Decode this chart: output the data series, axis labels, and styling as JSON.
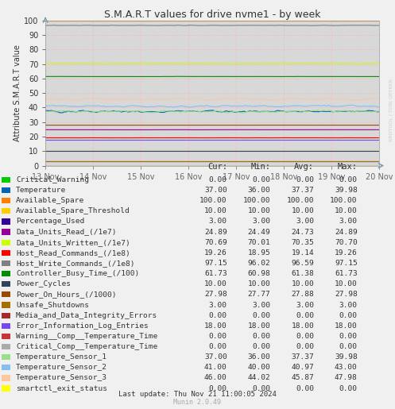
{
  "title": "S.M.A.R.T values for drive nvme1 - by week",
  "ylabel": "Attribute S.M.A.R.T value",
  "background_color": "#f0f0f0",
  "plot_bg_color": "#d8d8d8",
  "figsize": [
    4.97,
    5.15
  ],
  "dpi": 100,
  "x_start": 0,
  "x_end": 7,
  "x_ticks": [
    0,
    1,
    2,
    3,
    4,
    5,
    6,
    7
  ],
  "x_ticks_labels": [
    "13 Nov",
    "14 Nov",
    "15 Nov",
    "16 Nov",
    "17 Nov",
    "18 Nov",
    "19 Nov",
    "20 Nov"
  ],
  "ylim": [
    0,
    100
  ],
  "yticks": [
    0,
    10,
    20,
    30,
    40,
    50,
    60,
    70,
    80,
    90,
    100
  ],
  "watermark": "RRDTOOL / TOBI OETKER",
  "last_update": "Last update: Thu Nov 21 11:00:05 2024",
  "munin_version": "Munin 2.0.49",
  "series": [
    {
      "label": "Critical_Warning",
      "color": "#00cc00",
      "value": 0.0,
      "flat": true,
      "noise": 0.0
    },
    {
      "label": "Temperature",
      "color": "#0066b3",
      "value": 37.37,
      "flat": false,
      "noise": 1.5
    },
    {
      "label": "Available_Spare",
      "color": "#ff8000",
      "value": 100.0,
      "flat": true,
      "noise": 0.0
    },
    {
      "label": "Available_Spare_Threshold",
      "color": "#ffcc00",
      "value": 10.0,
      "flat": true,
      "noise": 0.0
    },
    {
      "label": "Percentage_Used",
      "color": "#330099",
      "value": 3.0,
      "flat": true,
      "noise": 0.0
    },
    {
      "label": "Data_Units_Read_(/1e7)",
      "color": "#990099",
      "value": 24.73,
      "flat": true,
      "noise": 0.1
    },
    {
      "label": "Data_Units_Written_(/1e7)",
      "color": "#ccff00",
      "value": 70.35,
      "flat": true,
      "noise": 0.2
    },
    {
      "label": "Host_Read_Commands_(/1e8)",
      "color": "#ff0000",
      "value": 19.14,
      "flat": true,
      "noise": 0.1
    },
    {
      "label": "Host_Write_Commands_(/1e8)",
      "color": "#808080",
      "value": 96.59,
      "flat": true,
      "noise": 0.3
    },
    {
      "label": "Controller_Busy_Time_(/100)",
      "color": "#008f00",
      "value": 61.38,
      "flat": true,
      "noise": 0.1
    },
    {
      "label": "Power_Cycles",
      "color": "#304358",
      "value": 10.0,
      "flat": true,
      "noise": 0.0
    },
    {
      "label": "Power_On_Hours_(/1000)",
      "color": "#9c4900",
      "value": 27.88,
      "flat": true,
      "noise": 0.05
    },
    {
      "label": "Unsafe_Shutdowns",
      "color": "#a57000",
      "value": 3.0,
      "flat": true,
      "noise": 0.0
    },
    {
      "label": "Media_and_Data_Integrity_Errors",
      "color": "#a52a2a",
      "value": 0.0,
      "flat": true,
      "noise": 0.0
    },
    {
      "label": "Error_Information_Log_Entries",
      "color": "#7648eb",
      "value": 18.0,
      "flat": true,
      "noise": 0.0
    },
    {
      "label": "Warning__Comp__Temperature_Time",
      "color": "#cc3333",
      "value": 0.0,
      "flat": true,
      "noise": 0.0
    },
    {
      "label": "Critical_Comp__Temperature_Time",
      "color": "#aaaaaa",
      "value": 0.0,
      "flat": true,
      "noise": 0.0
    },
    {
      "label": "Temperature_Sensor_1",
      "color": "#98df8a",
      "value": 37.37,
      "flat": false,
      "noise": 1.5
    },
    {
      "label": "Temperature_Sensor_2",
      "color": "#86bfef",
      "value": 40.97,
      "flat": false,
      "noise": 1.5
    },
    {
      "label": "Temperature_Sensor_3",
      "color": "#ffc79e",
      "value": 45.87,
      "flat": false,
      "noise": 1.5
    },
    {
      "label": "smartctl_exit_status",
      "color": "#ffff00",
      "value": 0.0,
      "flat": true,
      "noise": 0.0
    }
  ],
  "legend_data": [
    {
      "label": "Critical_Warning",
      "color": "#00cc00",
      "cur": "0.00",
      "min": "0.00",
      "avg": "0.00",
      "max": "0.00"
    },
    {
      "label": "Temperature",
      "color": "#0066b3",
      "cur": "37.00",
      "min": "36.00",
      "avg": "37.37",
      "max": "39.98"
    },
    {
      "label": "Available_Spare",
      "color": "#ff8000",
      "cur": "100.00",
      "min": "100.00",
      "avg": "100.00",
      "max": "100.00"
    },
    {
      "label": "Available_Spare_Threshold",
      "color": "#ffcc00",
      "cur": "10.00",
      "min": "10.00",
      "avg": "10.00",
      "max": "10.00"
    },
    {
      "label": "Percentage_Used",
      "color": "#330099",
      "cur": "3.00",
      "min": "3.00",
      "avg": "3.00",
      "max": "3.00"
    },
    {
      "label": "Data_Units_Read_(/1e7)",
      "color": "#990099",
      "cur": "24.89",
      "min": "24.49",
      "avg": "24.73",
      "max": "24.89"
    },
    {
      "label": "Data_Units_Written_(/1e7)",
      "color": "#ccff00",
      "cur": "70.69",
      "min": "70.01",
      "avg": "70.35",
      "max": "70.70"
    },
    {
      "label": "Host_Read_Commands_(/1e8)",
      "color": "#ff0000",
      "cur": "19.26",
      "min": "18.95",
      "avg": "19.14",
      "max": "19.26"
    },
    {
      "label": "Host_Write_Commands_(/1e8)",
      "color": "#808080",
      "cur": "97.15",
      "min": "96.02",
      "avg": "96.59",
      "max": "97.15"
    },
    {
      "label": "Controller_Busy_Time_(/100)",
      "color": "#008f00",
      "cur": "61.73",
      "min": "60.98",
      "avg": "61.38",
      "max": "61.73"
    },
    {
      "label": "Power_Cycles",
      "color": "#304358",
      "cur": "10.00",
      "min": "10.00",
      "avg": "10.00",
      "max": "10.00"
    },
    {
      "label": "Power_On_Hours_(/1000)",
      "color": "#9c4900",
      "cur": "27.98",
      "min": "27.77",
      "avg": "27.88",
      "max": "27.98"
    },
    {
      "label": "Unsafe_Shutdowns",
      "color": "#a57000",
      "cur": "3.00",
      "min": "3.00",
      "avg": "3.00",
      "max": "3.00"
    },
    {
      "label": "Media_and_Data_Integrity_Errors",
      "color": "#a52a2a",
      "cur": "0.00",
      "min": "0.00",
      "avg": "0.00",
      "max": "0.00"
    },
    {
      "label": "Error_Information_Log_Entries",
      "color": "#7648eb",
      "cur": "18.00",
      "min": "18.00",
      "avg": "18.00",
      "max": "18.00"
    },
    {
      "label": "Warning__Comp__Temperature_Time",
      "color": "#cc3333",
      "cur": "0.00",
      "min": "0.00",
      "avg": "0.00",
      "max": "0.00"
    },
    {
      "label": "Critical_Comp__Temperature_Time",
      "color": "#aaaaaa",
      "cur": "0.00",
      "min": "0.00",
      "avg": "0.00",
      "max": "0.00"
    },
    {
      "label": "Temperature_Sensor_1",
      "color": "#98df8a",
      "cur": "37.00",
      "min": "36.00",
      "avg": "37.37",
      "max": "39.98"
    },
    {
      "label": "Temperature_Sensor_2",
      "color": "#86bfef",
      "cur": "41.00",
      "min": "40.00",
      "avg": "40.97",
      "max": "43.00"
    },
    {
      "label": "Temperature_Sensor_3",
      "color": "#ffc79e",
      "cur": "46.00",
      "min": "44.02",
      "avg": "45.87",
      "max": "47.98"
    },
    {
      "label": "smartctl_exit_status",
      "color": "#ffff00",
      "cur": "0.00",
      "min": "0.00",
      "avg": "0.00",
      "max": "0.00"
    }
  ]
}
